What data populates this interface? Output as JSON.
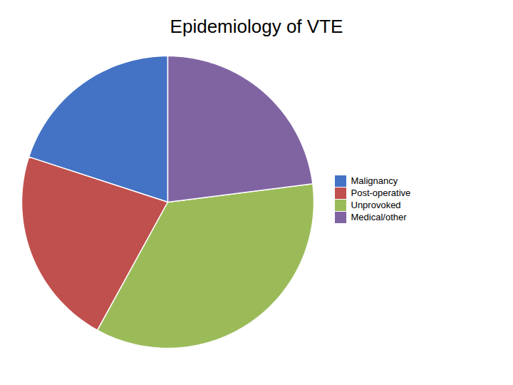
{
  "chart_data": {
    "type": "pie",
    "title": "Epidemiology of VTE",
    "categories": [
      "Malignancy",
      "Post-operative",
      "Unprovoked",
      "Medical/other"
    ],
    "values": [
      20,
      22,
      35,
      23
    ],
    "colors": [
      "#4472C4",
      "#C0504D",
      "#9BBB59",
      "#8064A2"
    ],
    "legend": "right"
  }
}
